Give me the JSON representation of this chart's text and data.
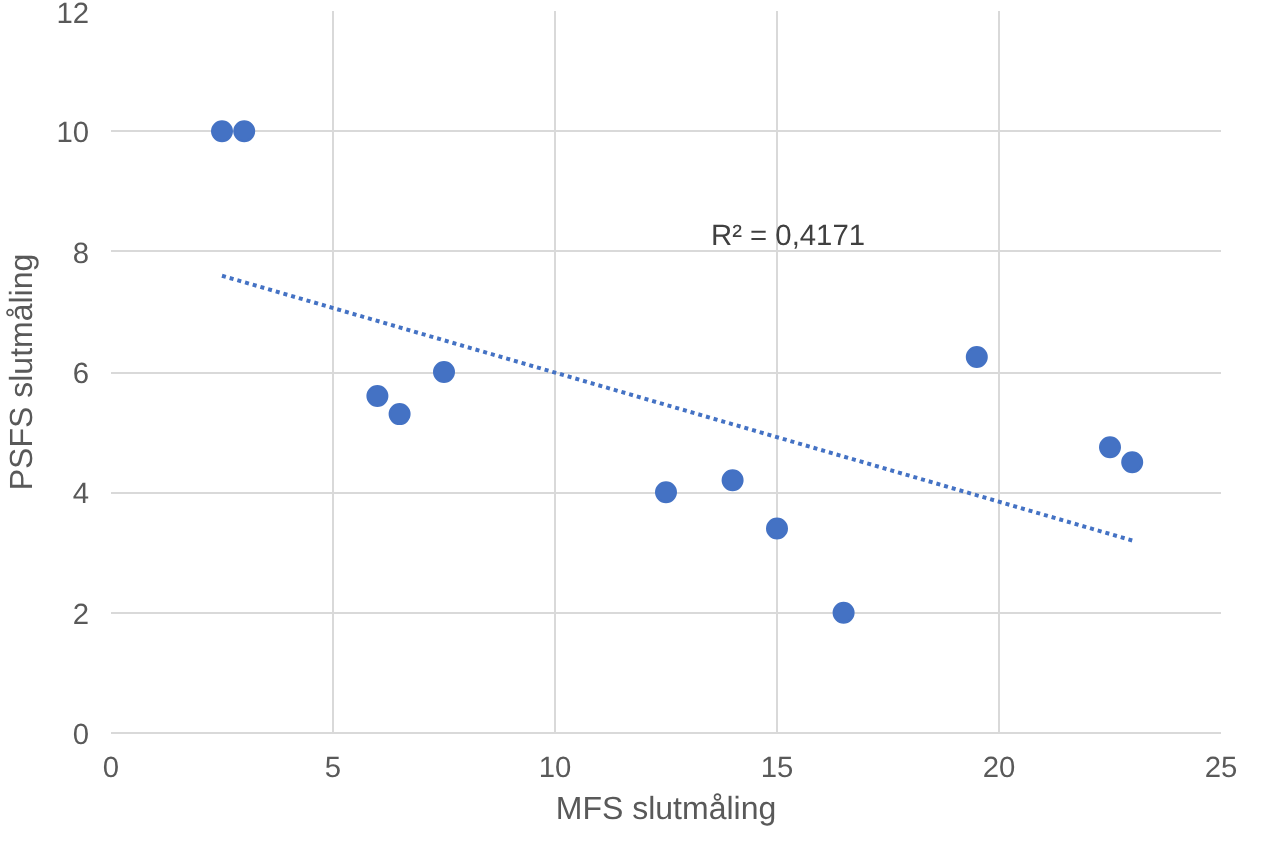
{
  "chart_data": {
    "type": "scatter",
    "xlabel": "MFS slutmåling",
    "ylabel": "PSFS slutmåling",
    "xlim": [
      0,
      25
    ],
    "ylim": [
      0,
      12
    ],
    "xticks": [
      0,
      5,
      10,
      15,
      20,
      25
    ],
    "yticks": [
      0,
      2,
      4,
      6,
      8,
      10,
      12
    ],
    "grid": true,
    "series": [
      {
        "marker": "circle",
        "color": "#4472c4",
        "x": [
          2.5,
          3,
          6,
          6.5,
          7.5,
          12.5,
          14,
          15,
          16.5,
          19.5,
          22.5,
          23
        ],
        "values": [
          10,
          10,
          5.6,
          5.3,
          6,
          4,
          4.2,
          3.4,
          2,
          6.25,
          4.75,
          4.5
        ]
      },
      {
        "type": "line",
        "color": "#4472c4",
        "line_style": "dotted",
        "x": [
          2.5,
          23
        ],
        "values": [
          7.6,
          3.2
        ]
      }
    ],
    "annotations": [
      "R² = 0,4171"
    ]
  }
}
